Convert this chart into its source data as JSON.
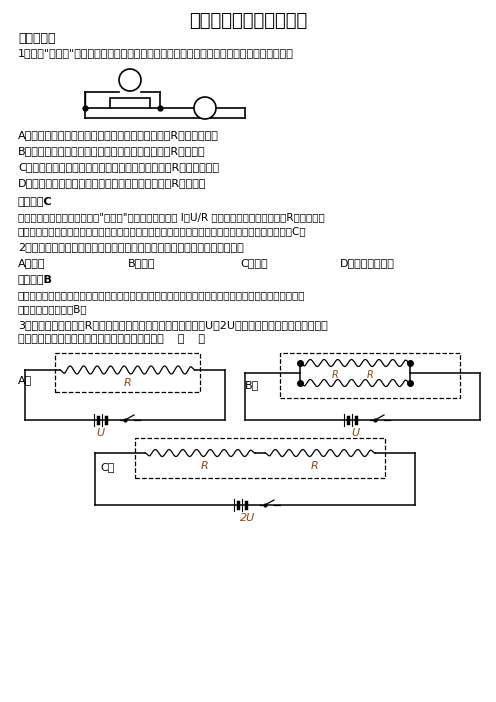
{
  "title": "初三上学期期末物理试卷",
  "bg_color": "#ffffff",
  "section1": "一、选择题",
  "q1": "1．利用\"伏安法\"测电阻的部分电路如图所示，关于测量误差和产生原因，下列说法正确的是",
  "q1_opts": [
    "A．测量值偏大，测得值可等效为电压表内阻和电阻R并联的总电阻",
    "B．测量值偏大，测得值可等效为电流表内阻和电阻R的总电阻",
    "C．测量值偏小，测得值可等效为电压表内阻和电阻R并联的总电阻",
    "D．测量值偏小，测得值可等效为电流表内阻和电阻R的总电阻"
  ],
  "ans1": "【答案】C",
  "exp1a": "【解析】由图知道，采用的是\"伏安法\"外接法测电阻，由 I＝U/R 知道，电阻测量值等于电阻R与电压表内",
  "exp1b": "阻并联后的总电阻，因为电压表的分流作用，电流测量值偏大，而电压测量值准确，即会偏小，故选C。",
  "q2": "2．舞蹈演员利用平面镜矫正舞姿，逐渐向远离平面镜方向移动时，镜中的像",
  "q2_opts": [
    "A．变小",
    "B．不变",
    "C．变大",
    "D．先变大再变小"
  ],
  "ans2": "【答案】B",
  "exp2a": "【详解】平面镜所成的像与物体是等大的，所以当人远离平面镜时，视觉上感觉像在变小，但实际上像的",
  "exp2b": "大小并没有变，故选B。",
  "q3a": "3．如图所示，阻值为R的电阻丝，用四种方法分别接在电压为U或2U的电源上。闭合开关后，在相同",
  "q3b": "时间内，虚线框里的电阻丝产生的总热量最多的是    （    ）",
  "label_A": "A．",
  "label_B": "B．",
  "label_C": "C．",
  "label_U": "U",
  "label_2U": "2U",
  "label_R": "R"
}
